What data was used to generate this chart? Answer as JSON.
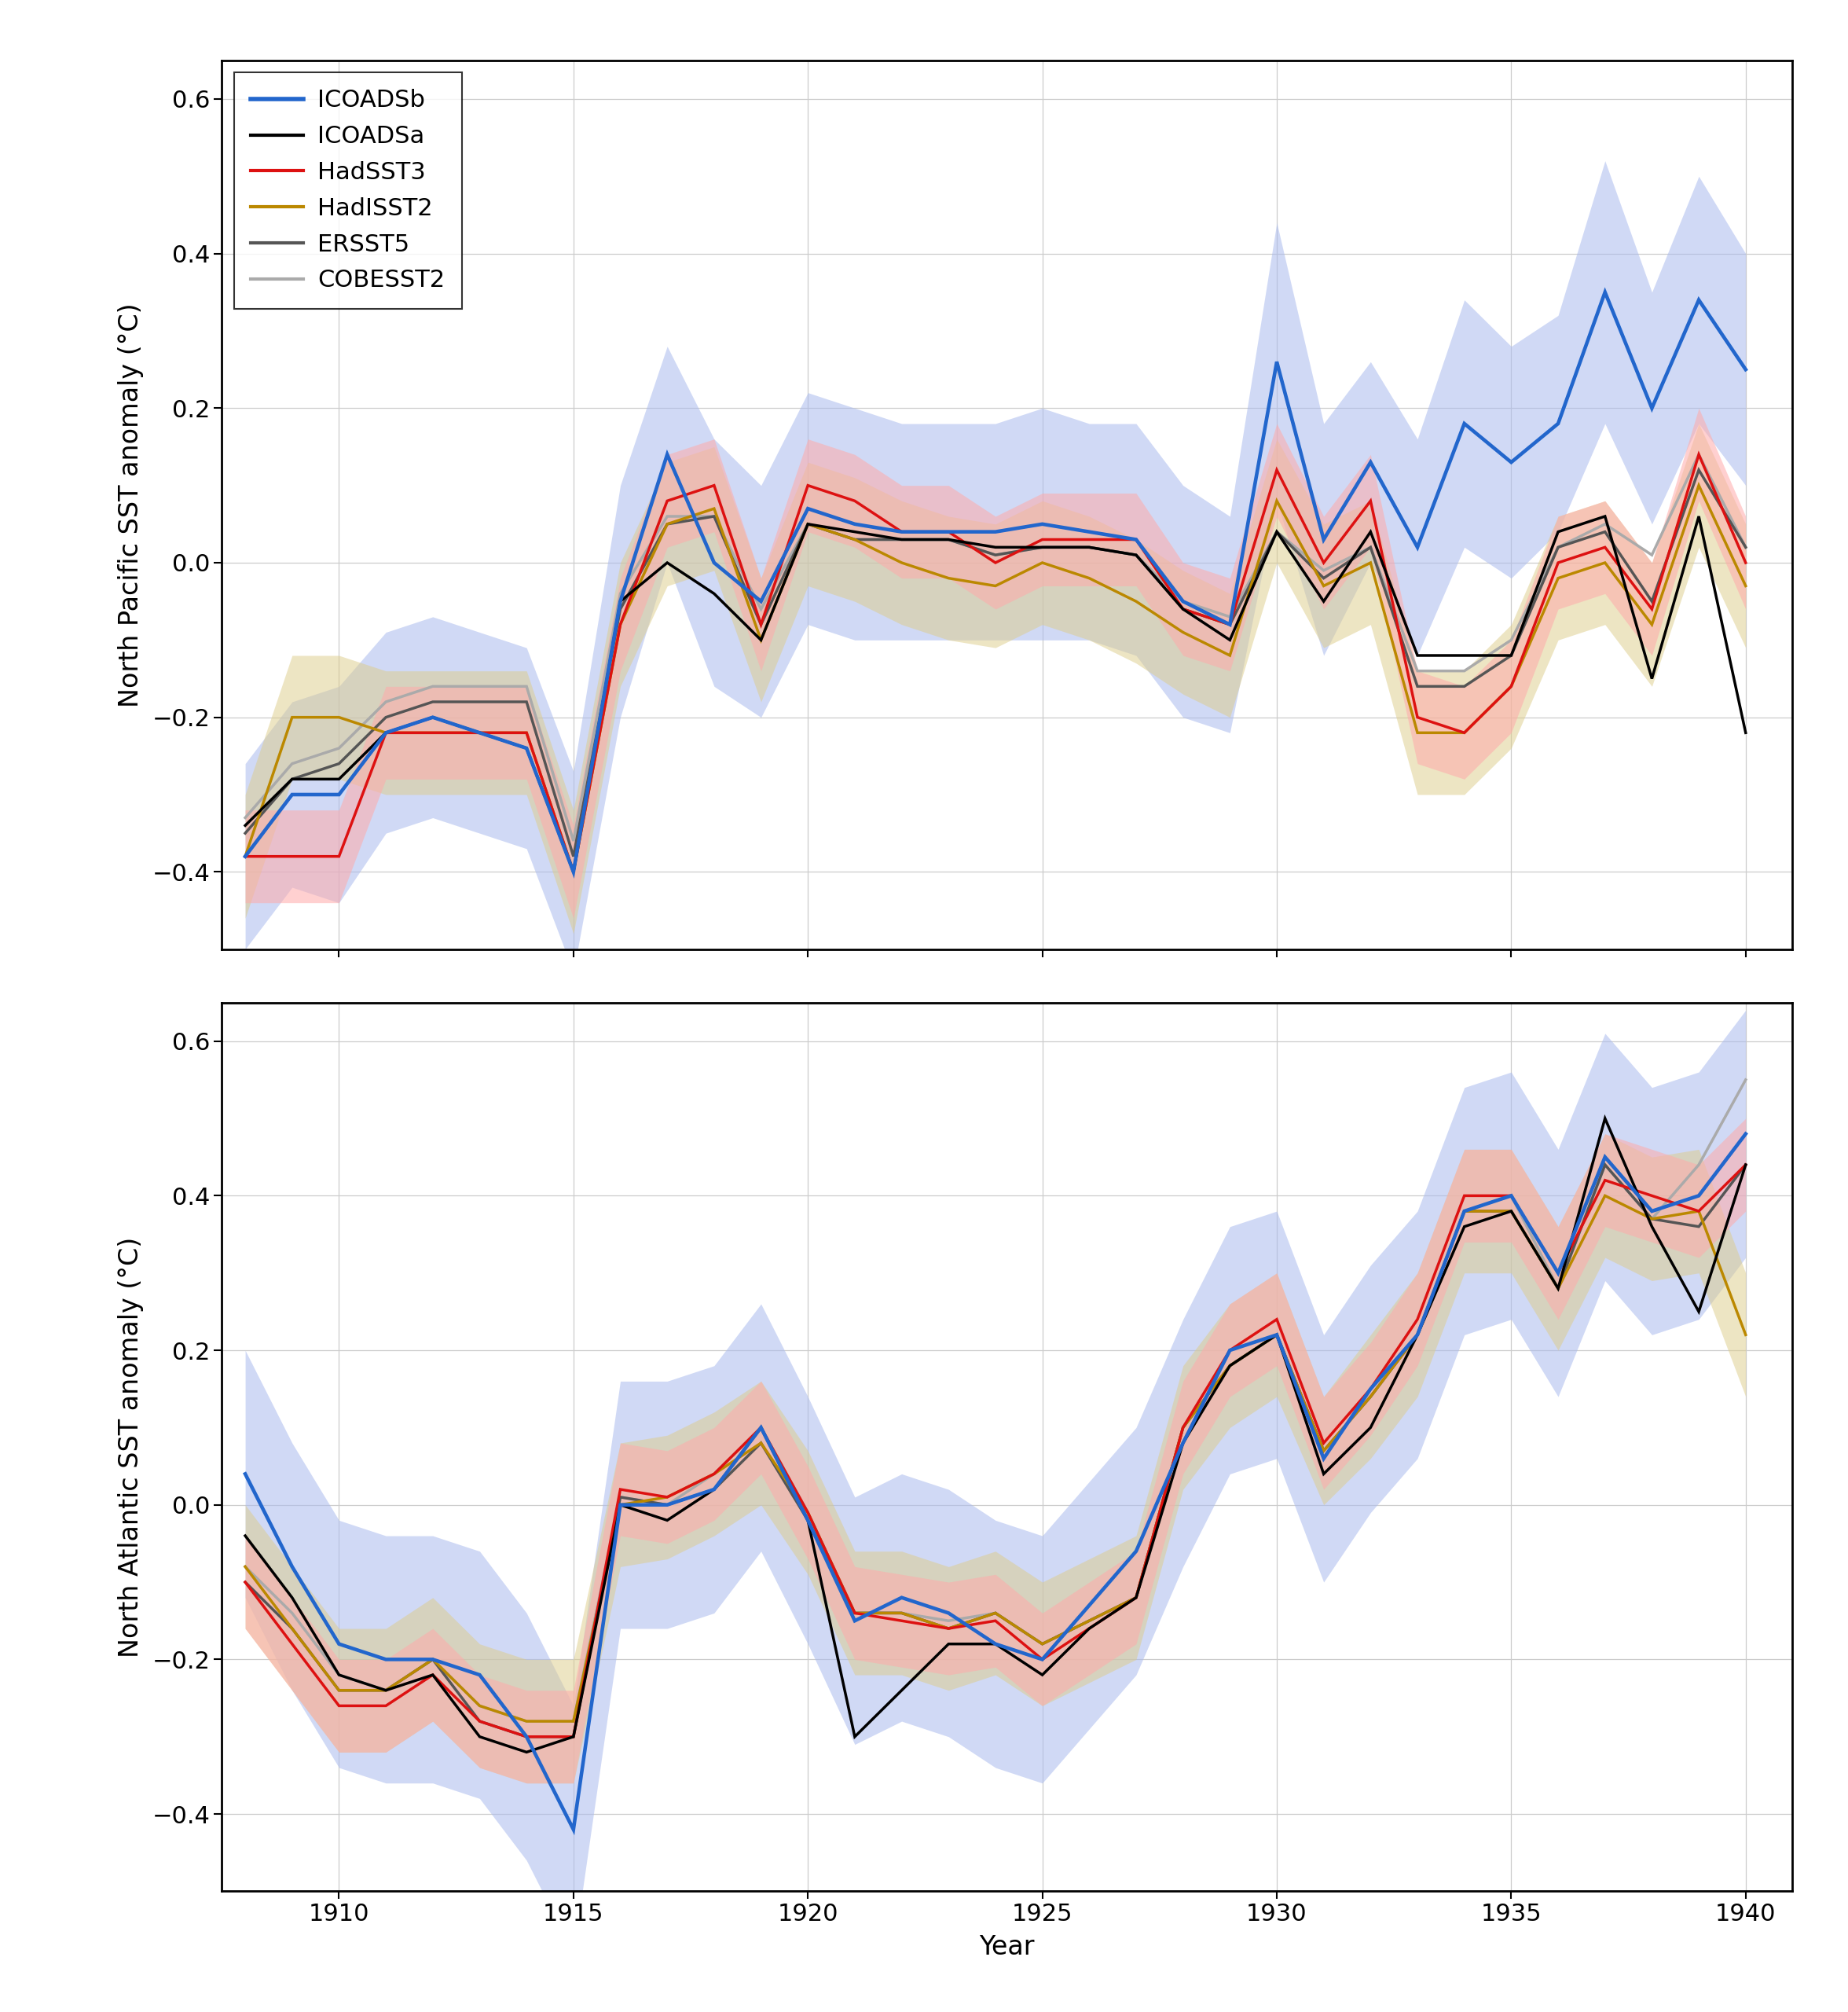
{
  "years": [
    1908,
    1909,
    1910,
    1911,
    1912,
    1913,
    1914,
    1915,
    1916,
    1917,
    1918,
    1919,
    1920,
    1921,
    1922,
    1923,
    1924,
    1925,
    1926,
    1927,
    1928,
    1929,
    1930,
    1931,
    1932,
    1933,
    1934,
    1935,
    1936,
    1937,
    1938,
    1939,
    1940
  ],
  "np_ICOADSb": [
    -0.38,
    -0.3,
    -0.3,
    -0.22,
    -0.2,
    -0.22,
    -0.24,
    -0.4,
    -0.05,
    0.14,
    0.0,
    -0.05,
    0.07,
    0.05,
    0.04,
    0.04,
    0.04,
    0.05,
    0.04,
    0.03,
    -0.05,
    -0.08,
    0.26,
    0.03,
    0.13,
    0.02,
    0.18,
    0.13,
    0.18,
    0.35,
    0.2,
    0.34,
    0.25
  ],
  "np_ICOADSb_lo": [
    -0.5,
    -0.42,
    -0.44,
    -0.35,
    -0.33,
    -0.35,
    -0.37,
    -0.53,
    -0.2,
    0.0,
    -0.16,
    -0.2,
    -0.08,
    -0.1,
    -0.1,
    -0.1,
    -0.1,
    -0.1,
    -0.1,
    -0.12,
    -0.2,
    -0.22,
    0.08,
    -0.12,
    0.0,
    -0.12,
    0.02,
    -0.02,
    0.04,
    0.18,
    0.05,
    0.18,
    0.1
  ],
  "np_ICOADSb_hi": [
    -0.26,
    -0.18,
    -0.16,
    -0.09,
    -0.07,
    -0.09,
    -0.11,
    -0.27,
    0.1,
    0.28,
    0.16,
    0.1,
    0.22,
    0.2,
    0.18,
    0.18,
    0.18,
    0.2,
    0.18,
    0.18,
    0.1,
    0.06,
    0.44,
    0.18,
    0.26,
    0.16,
    0.34,
    0.28,
    0.32,
    0.52,
    0.35,
    0.5,
    0.4
  ],
  "np_ICOADSa": [
    -0.34,
    -0.28,
    -0.28,
    -0.22,
    -0.2,
    -0.22,
    -0.24,
    -0.4,
    -0.05,
    0.0,
    -0.04,
    -0.1,
    0.05,
    0.04,
    0.03,
    0.03,
    0.02,
    0.02,
    0.02,
    0.01,
    -0.06,
    -0.1,
    0.04,
    -0.05,
    0.04,
    -0.12,
    -0.12,
    -0.12,
    0.04,
    0.06,
    -0.15,
    0.06,
    -0.22
  ],
  "np_HadSST3": [
    -0.38,
    -0.38,
    -0.38,
    -0.22,
    -0.22,
    -0.22,
    -0.22,
    -0.4,
    -0.08,
    0.08,
    0.1,
    -0.08,
    0.1,
    0.08,
    0.04,
    0.04,
    0.0,
    0.03,
    0.03,
    0.03,
    -0.06,
    -0.08,
    0.12,
    0.0,
    0.08,
    -0.2,
    -0.22,
    -0.16,
    0.0,
    0.02,
    -0.06,
    0.14,
    0.0
  ],
  "np_HadISST2": [
    -0.38,
    -0.2,
    -0.2,
    -0.22,
    -0.22,
    -0.22,
    -0.22,
    -0.4,
    -0.08,
    0.05,
    0.07,
    -0.1,
    0.05,
    0.03,
    0.0,
    -0.02,
    -0.03,
    0.0,
    -0.02,
    -0.05,
    -0.09,
    -0.12,
    0.08,
    -0.03,
    0.0,
    -0.22,
    -0.22,
    -0.16,
    -0.02,
    0.0,
    -0.08,
    0.1,
    -0.03
  ],
  "np_ERSST5": [
    -0.35,
    -0.28,
    -0.26,
    -0.2,
    -0.18,
    -0.18,
    -0.18,
    -0.38,
    -0.06,
    0.05,
    0.06,
    -0.08,
    0.05,
    0.03,
    0.03,
    0.03,
    0.01,
    0.02,
    0.02,
    0.01,
    -0.06,
    -0.08,
    0.04,
    -0.02,
    0.02,
    -0.16,
    -0.16,
    -0.12,
    0.02,
    0.04,
    -0.05,
    0.12,
    0.02
  ],
  "np_COBESST2": [
    -0.33,
    -0.26,
    -0.24,
    -0.18,
    -0.16,
    -0.16,
    -0.16,
    -0.36,
    -0.04,
    0.06,
    0.06,
    -0.06,
    0.05,
    0.03,
    0.03,
    0.03,
    0.01,
    0.02,
    0.02,
    0.01,
    -0.05,
    -0.07,
    0.04,
    -0.01,
    0.02,
    -0.14,
    -0.14,
    -0.1,
    0.02,
    0.05,
    0.01,
    0.14,
    0.02
  ],
  "np_HadSST3_lo": [
    -0.44,
    -0.44,
    -0.44,
    -0.28,
    -0.28,
    -0.28,
    -0.28,
    -0.46,
    -0.14,
    0.02,
    0.04,
    -0.14,
    0.04,
    0.02,
    -0.02,
    -0.02,
    -0.06,
    -0.03,
    -0.03,
    -0.03,
    -0.12,
    -0.14,
    0.06,
    -0.06,
    0.02,
    -0.26,
    -0.28,
    -0.22,
    -0.06,
    -0.04,
    -0.12,
    0.08,
    -0.06
  ],
  "np_HadSST3_hi": [
    -0.32,
    -0.32,
    -0.32,
    -0.16,
    -0.16,
    -0.16,
    -0.16,
    -0.34,
    -0.02,
    0.14,
    0.16,
    -0.02,
    0.16,
    0.14,
    0.1,
    0.1,
    0.06,
    0.09,
    0.09,
    0.09,
    0.0,
    -0.02,
    0.18,
    0.06,
    0.14,
    -0.14,
    -0.16,
    -0.1,
    0.06,
    0.08,
    0.0,
    0.2,
    0.06
  ],
  "np_HadISST2_lo": [
    -0.46,
    -0.28,
    -0.28,
    -0.3,
    -0.3,
    -0.3,
    -0.3,
    -0.48,
    -0.16,
    -0.03,
    -0.01,
    -0.18,
    -0.03,
    -0.05,
    -0.08,
    -0.1,
    -0.11,
    -0.08,
    -0.1,
    -0.13,
    -0.17,
    -0.2,
    0.0,
    -0.11,
    -0.08,
    -0.3,
    -0.3,
    -0.24,
    -0.1,
    -0.08,
    -0.16,
    0.02,
    -0.11
  ],
  "np_HadISST2_hi": [
    -0.3,
    -0.12,
    -0.12,
    -0.14,
    -0.14,
    -0.14,
    -0.14,
    -0.32,
    0.0,
    0.13,
    0.15,
    -0.02,
    0.13,
    0.11,
    0.08,
    0.06,
    0.05,
    0.08,
    0.06,
    0.03,
    -0.01,
    -0.04,
    0.16,
    0.05,
    0.08,
    -0.14,
    -0.14,
    -0.08,
    0.06,
    0.08,
    0.0,
    0.18,
    0.05
  ],
  "na_ICOADSb": [
    0.04,
    -0.08,
    -0.18,
    -0.2,
    -0.2,
    -0.22,
    -0.3,
    -0.42,
    0.0,
    0.0,
    0.02,
    0.1,
    -0.02,
    -0.15,
    -0.12,
    -0.14,
    -0.18,
    -0.2,
    -0.13,
    -0.06,
    0.08,
    0.2,
    0.22,
    0.06,
    0.15,
    0.22,
    0.38,
    0.4,
    0.3,
    0.45,
    0.38,
    0.4,
    0.48
  ],
  "na_ICOADSb_lo": [
    -0.12,
    -0.24,
    -0.34,
    -0.36,
    -0.36,
    -0.38,
    -0.46,
    -0.58,
    -0.16,
    -0.16,
    -0.14,
    -0.06,
    -0.18,
    -0.31,
    -0.28,
    -0.3,
    -0.34,
    -0.36,
    -0.29,
    -0.22,
    -0.08,
    0.04,
    0.06,
    -0.1,
    -0.01,
    0.06,
    0.22,
    0.24,
    0.14,
    0.29,
    0.22,
    0.24,
    0.32
  ],
  "na_ICOADSb_hi": [
    0.2,
    0.08,
    -0.02,
    -0.04,
    -0.04,
    -0.06,
    -0.14,
    -0.26,
    0.16,
    0.16,
    0.18,
    0.26,
    0.14,
    0.01,
    0.04,
    0.02,
    -0.02,
    -0.04,
    0.03,
    0.1,
    0.24,
    0.36,
    0.38,
    0.22,
    0.31,
    0.38,
    0.54,
    0.56,
    0.46,
    0.61,
    0.54,
    0.56,
    0.64
  ],
  "na_ICOADSa": [
    -0.04,
    -0.12,
    -0.22,
    -0.24,
    -0.22,
    -0.3,
    -0.32,
    -0.3,
    0.0,
    -0.02,
    0.02,
    0.1,
    -0.02,
    -0.3,
    -0.24,
    -0.18,
    -0.18,
    -0.22,
    -0.16,
    -0.12,
    0.08,
    0.18,
    0.22,
    0.04,
    0.1,
    0.22,
    0.36,
    0.38,
    0.28,
    0.5,
    0.36,
    0.25,
    0.44
  ],
  "na_HadSST3": [
    -0.1,
    -0.18,
    -0.26,
    -0.26,
    -0.22,
    -0.28,
    -0.3,
    -0.3,
    0.02,
    0.01,
    0.04,
    0.1,
    -0.01,
    -0.14,
    -0.15,
    -0.16,
    -0.15,
    -0.2,
    -0.16,
    -0.12,
    0.1,
    0.2,
    0.24,
    0.08,
    0.15,
    0.24,
    0.4,
    0.4,
    0.3,
    0.42,
    0.4,
    0.38,
    0.44
  ],
  "na_HadISST2": [
    -0.08,
    -0.16,
    -0.24,
    -0.24,
    -0.2,
    -0.26,
    -0.28,
    -0.28,
    0.0,
    0.01,
    0.04,
    0.08,
    -0.01,
    -0.14,
    -0.14,
    -0.16,
    -0.14,
    -0.18,
    -0.15,
    -0.12,
    0.1,
    0.18,
    0.22,
    0.07,
    0.14,
    0.22,
    0.38,
    0.38,
    0.28,
    0.4,
    0.37,
    0.38,
    0.22
  ],
  "na_ERSST5": [
    -0.1,
    -0.16,
    -0.24,
    -0.24,
    -0.2,
    -0.28,
    -0.3,
    -0.3,
    0.01,
    0.0,
    0.02,
    0.08,
    -0.02,
    -0.14,
    -0.14,
    -0.16,
    -0.14,
    -0.18,
    -0.15,
    -0.12,
    0.1,
    0.18,
    0.22,
    0.07,
    0.14,
    0.22,
    0.38,
    0.38,
    0.28,
    0.44,
    0.37,
    0.36,
    0.44
  ],
  "na_COBESST2": [
    -0.08,
    -0.14,
    -0.22,
    -0.24,
    -0.2,
    -0.26,
    -0.28,
    -0.28,
    0.01,
    0.0,
    0.04,
    0.1,
    -0.01,
    -0.14,
    -0.14,
    -0.15,
    -0.14,
    -0.18,
    -0.15,
    -0.12,
    0.1,
    0.18,
    0.22,
    0.07,
    0.14,
    0.22,
    0.38,
    0.4,
    0.28,
    0.44,
    0.37,
    0.44,
    0.55
  ],
  "na_HadSST3_lo": [
    -0.16,
    -0.24,
    -0.32,
    -0.32,
    -0.28,
    -0.34,
    -0.36,
    -0.36,
    -0.04,
    -0.05,
    -0.02,
    0.04,
    -0.07,
    -0.2,
    -0.21,
    -0.22,
    -0.21,
    -0.26,
    -0.22,
    -0.18,
    0.04,
    0.14,
    0.18,
    0.02,
    0.09,
    0.18,
    0.34,
    0.34,
    0.24,
    0.36,
    0.34,
    0.32,
    0.38
  ],
  "na_HadSST3_hi": [
    -0.04,
    -0.12,
    -0.2,
    -0.2,
    -0.16,
    -0.22,
    -0.24,
    -0.24,
    0.08,
    0.07,
    0.1,
    0.16,
    0.05,
    -0.08,
    -0.09,
    -0.1,
    -0.09,
    -0.14,
    -0.1,
    -0.06,
    0.16,
    0.26,
    0.3,
    0.14,
    0.21,
    0.3,
    0.46,
    0.46,
    0.36,
    0.48,
    0.46,
    0.44,
    0.5
  ],
  "na_HadISST2_lo": [
    -0.16,
    -0.24,
    -0.32,
    -0.32,
    -0.28,
    -0.34,
    -0.36,
    -0.36,
    -0.08,
    -0.07,
    -0.04,
    0.0,
    -0.09,
    -0.22,
    -0.22,
    -0.24,
    -0.22,
    -0.26,
    -0.23,
    -0.2,
    0.02,
    0.1,
    0.14,
    0.0,
    0.06,
    0.14,
    0.3,
    0.3,
    0.2,
    0.32,
    0.29,
    0.3,
    0.14
  ],
  "na_HadISST2_hi": [
    -0.0,
    -0.08,
    -0.16,
    -0.16,
    -0.12,
    -0.18,
    -0.2,
    -0.2,
    0.08,
    0.09,
    0.12,
    0.16,
    0.07,
    -0.06,
    -0.06,
    -0.08,
    -0.06,
    -0.1,
    -0.07,
    -0.04,
    0.18,
    0.26,
    0.3,
    0.14,
    0.22,
    0.3,
    0.46,
    0.46,
    0.36,
    0.48,
    0.45,
    0.46,
    0.3
  ],
  "colors": {
    "ICOADSb": "#2266cc",
    "ICOADSa": "#000000",
    "HadSST3": "#dd1111",
    "HadISST2": "#bb8800",
    "ERSST5": "#555555",
    "COBESST2": "#aaaaaa"
  },
  "ylim": [
    -0.5,
    0.65
  ],
  "xlim": [
    1907.5,
    1941.0
  ],
  "ylabel_top": "North Pacific SST anomaly (°C)",
  "ylabel_bot": "North Atlantic SST anomaly (°C)",
  "xlabel": "Year",
  "yticks": [
    -0.4,
    -0.2,
    0.0,
    0.2,
    0.4,
    0.6
  ],
  "xticks": [
    1910,
    1915,
    1920,
    1925,
    1930,
    1935,
    1940
  ],
  "linewidth": 2.5,
  "fontsize_label": 24,
  "fontsize_tick": 22,
  "fontsize_legend": 22
}
